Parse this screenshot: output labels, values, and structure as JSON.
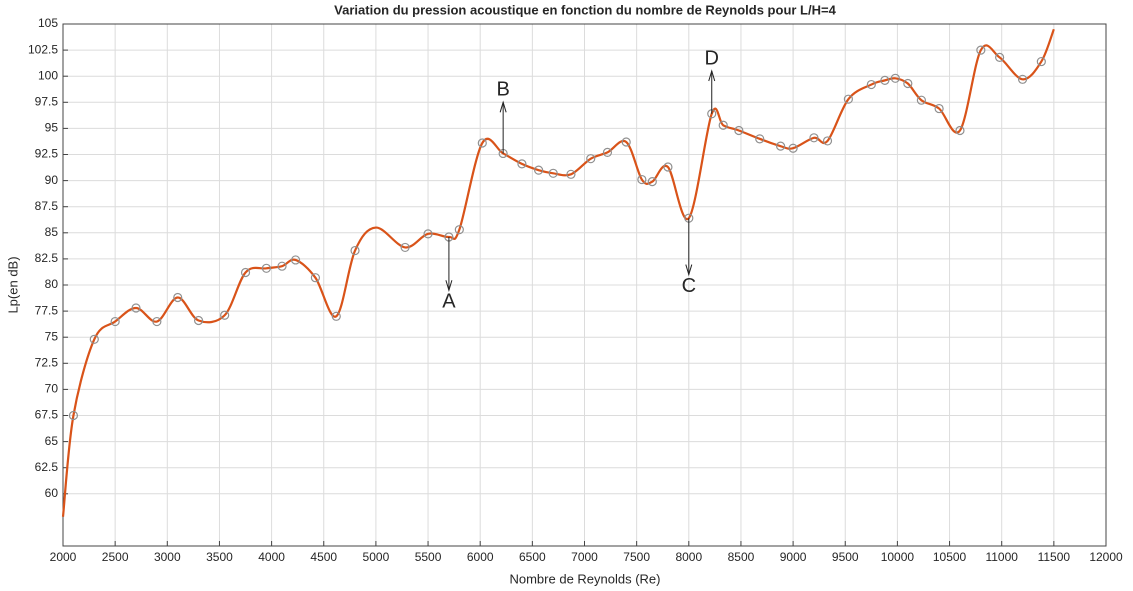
{
  "chart_data": {
    "type": "line",
    "title": "Variation du pression acoustique en fonction du nombre de Reynolds pour L/H=4",
    "xlabel": "Nombre de Reynolds (Re)",
    "ylabel": "Lp(en dB)",
    "xlim": [
      2000,
      12000
    ],
    "xticks": [
      2000,
      2500,
      3000,
      3500,
      4000,
      4500,
      5000,
      5500,
      6000,
      6500,
      7000,
      7500,
      8000,
      8500,
      9000,
      9500,
      10000,
      10500,
      11000,
      11500,
      12000
    ],
    "ylim": [
      55,
      105
    ],
    "yticks": [
      60,
      62.5,
      65,
      67.5,
      70,
      72.5,
      75,
      77.5,
      80,
      82.5,
      85,
      87.5,
      90,
      92.5,
      95,
      97.5,
      100,
      102.5,
      105
    ],
    "grid": true,
    "curve": {
      "color": "#d95319",
      "x": [
        2000,
        2100,
        2300,
        2500,
        2700,
        2900,
        3100,
        3300,
        3550,
        3750,
        3950,
        4100,
        4230,
        4420,
        4620,
        4800,
        5000,
        5280,
        5500,
        5700,
        5800,
        6020,
        6220,
        6400,
        6560,
        6700,
        6870,
        7060,
        7220,
        7400,
        7550,
        7650,
        7800,
        8000,
        8220,
        8330,
        8480,
        8680,
        8880,
        9000,
        9200,
        9330,
        9530,
        9750,
        9880,
        9980,
        10100,
        10230,
        10400,
        10600,
        10800,
        10980,
        11200,
        11380,
        11500
      ],
      "values": [
        57.8,
        67.5,
        74.8,
        76.5,
        77.8,
        76.5,
        78.8,
        76.6,
        77.1,
        81.2,
        81.6,
        81.8,
        82.4,
        80.7,
        77,
        83.3,
        85.5,
        83.6,
        84.9,
        84.6,
        85.3,
        93.6,
        92.6,
        91.6,
        91,
        90.7,
        90.6,
        92.1,
        92.7,
        93.7,
        90.1,
        89.9,
        91.3,
        86.4,
        96.4,
        95.3,
        94.8,
        94,
        93.3,
        93.1,
        94.1,
        93.8,
        97.8,
        99.2,
        99.6,
        99.8,
        99.3,
        97.7,
        96.9,
        94.8,
        102.5,
        101.8,
        99.7,
        101.4,
        104.5
      ]
    },
    "markers": {
      "color": "#909090",
      "x": [
        2100,
        2300,
        2500,
        2700,
        2900,
        3100,
        3300,
        3550,
        3750,
        3950,
        4100,
        4230,
        4420,
        4620,
        4800,
        5280,
        5500,
        5700,
        5800,
        6020,
        6220,
        6400,
        6560,
        6700,
        6870,
        7060,
        7220,
        7400,
        7550,
        7650,
        7800,
        8000,
        8220,
        8330,
        8480,
        8680,
        8880,
        9000,
        9200,
        9330,
        9530,
        9750,
        9880,
        9980,
        10100,
        10230,
        10400,
        10600,
        10800,
        10980,
        11200,
        11380
      ],
      "values": [
        67.5,
        74.8,
        76.5,
        77.8,
        76.5,
        78.8,
        76.6,
        77.1,
        81.2,
        81.6,
        81.8,
        82.4,
        80.7,
        77,
        83.3,
        83.6,
        84.9,
        84.6,
        85.3,
        93.6,
        92.6,
        91.6,
        91,
        90.7,
        90.6,
        92.1,
        92.7,
        93.7,
        90.1,
        89.9,
        91.3,
        86.4,
        96.4,
        95.3,
        94.8,
        94,
        93.3,
        93.1,
        94.1,
        93.8,
        97.8,
        99.2,
        99.6,
        99.8,
        99.3,
        97.7,
        96.9,
        94.8,
        102.5,
        101.8,
        99.7,
        101.4
      ]
    },
    "annotations": [
      {
        "text": "A",
        "x": 5700,
        "y_from": 84.6,
        "y_to": 79.5
      },
      {
        "text": "B",
        "x": 6220,
        "y_from": 92.6,
        "y_to": 97.5
      },
      {
        "text": "C",
        "x": 8000,
        "y_from": 86.4,
        "y_to": 81
      },
      {
        "text": "D",
        "x": 8220,
        "y_from": 96.4,
        "y_to": 100.5
      }
    ]
  }
}
